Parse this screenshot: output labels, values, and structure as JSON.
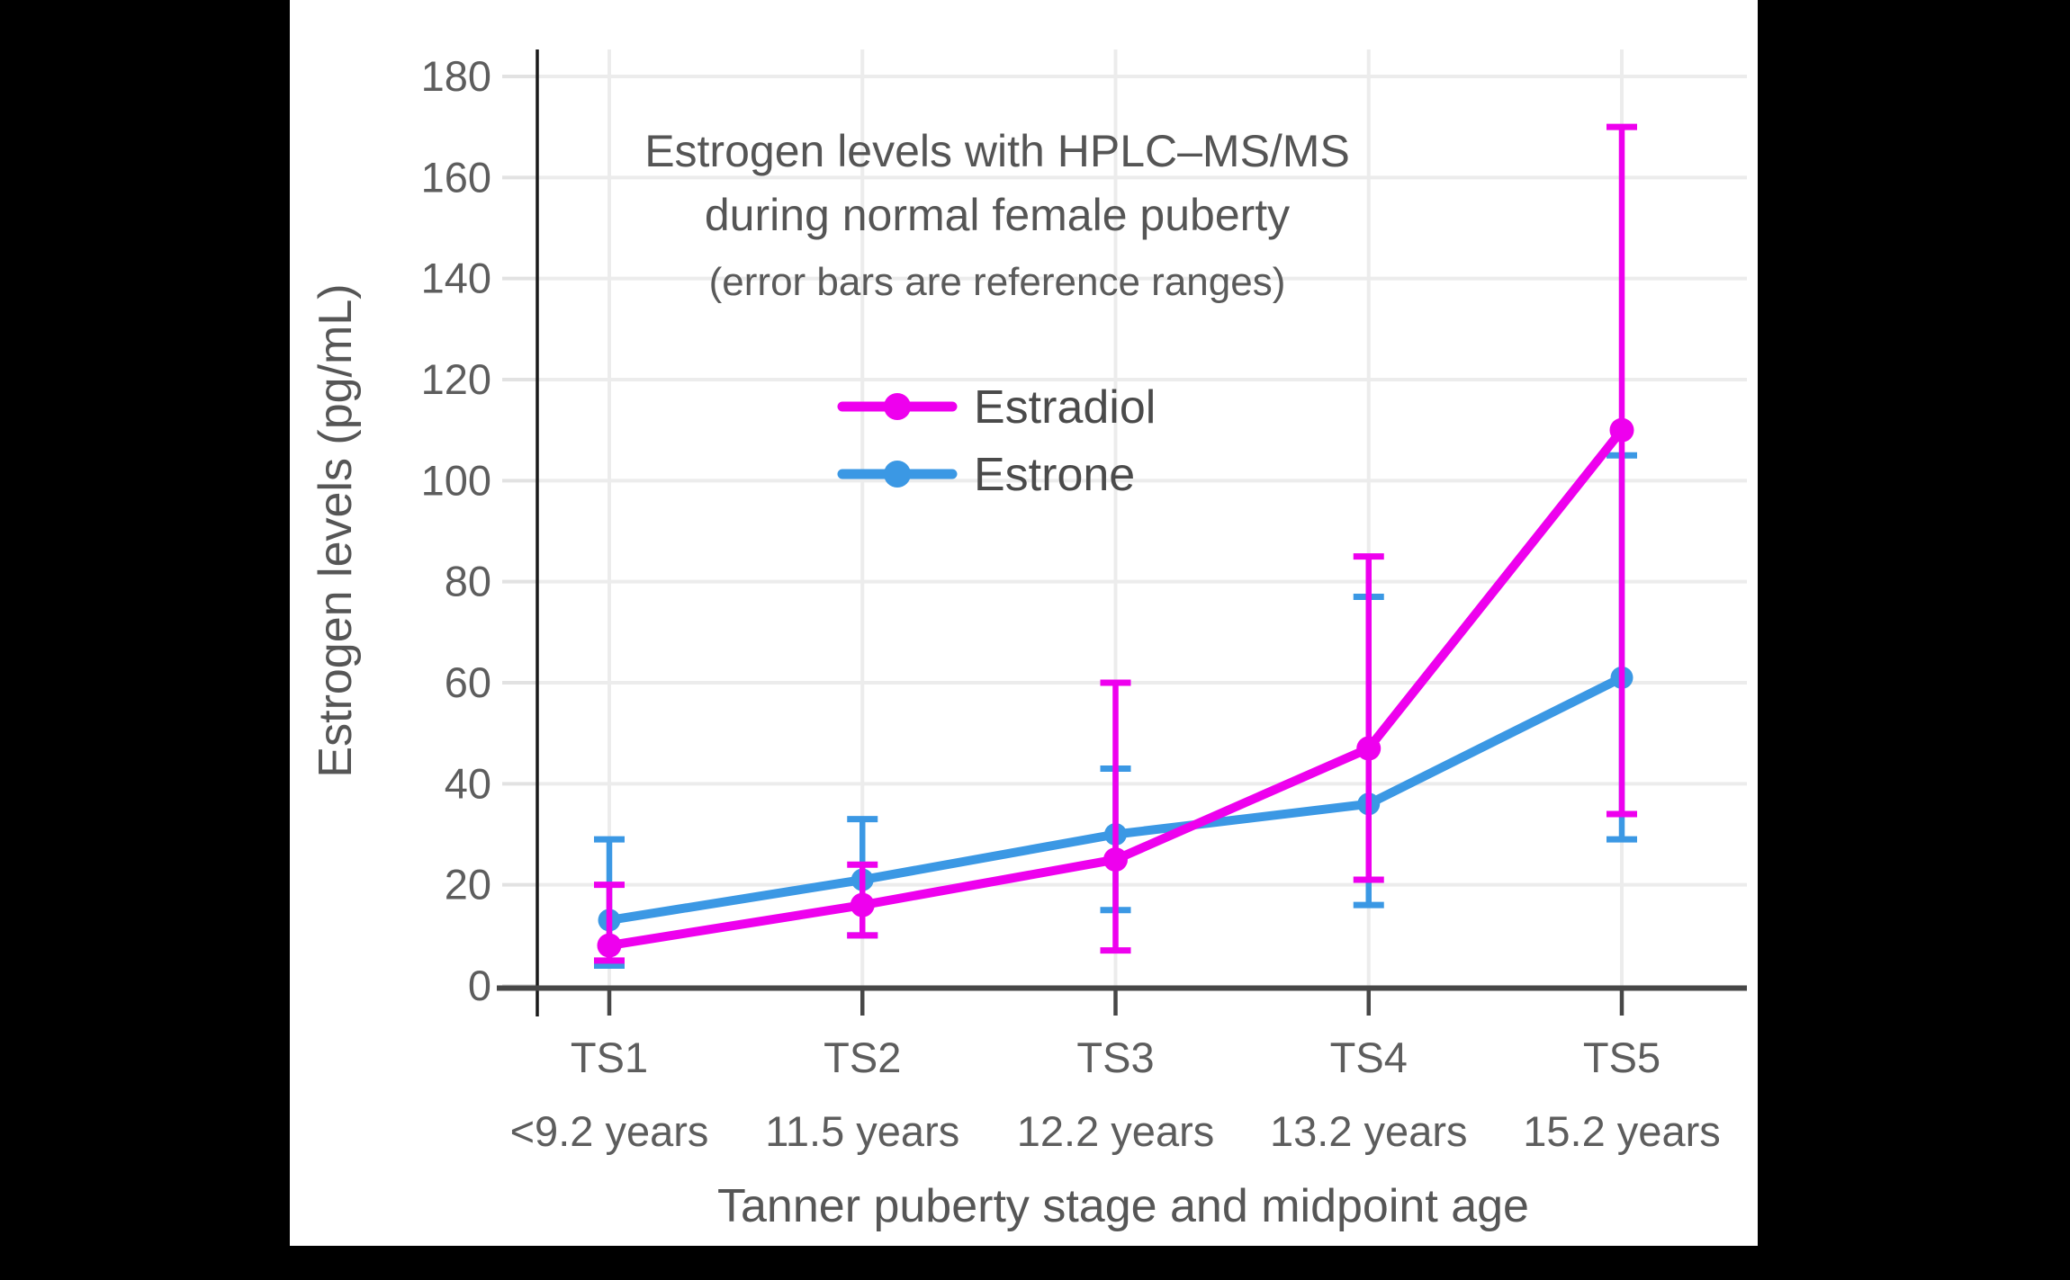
{
  "page": {
    "background_color": "#000000",
    "canvas_color": "#ffffff"
  },
  "chart_data": {
    "type": "line",
    "title": "Estrogen levels with HPLC–MS/MS during normal female puberty",
    "title_lines": [
      "Estrogen levels with HPLC–MS/MS",
      "during normal female puberty"
    ],
    "subtitle": "(error bars are reference ranges)",
    "xlabel": "Tanner puberty stage and midpoint age",
    "ylabel": "Estrogen levels (pg/mL)",
    "ylim": [
      0,
      180
    ],
    "ytick_step": 20,
    "grid": true,
    "legend_position": "inside-upper-left",
    "error_bars": "reference ranges",
    "categories": [
      "TS1",
      "TS2",
      "TS3",
      "TS4",
      "TS5"
    ],
    "category_sublabels": [
      "<9.2 years",
      "11.5 years",
      "12.2 years",
      "13.2 years",
      "15.2 years"
    ],
    "series": [
      {
        "name": "Estradiol",
        "color": "#ee00ee",
        "values": [
          8,
          16,
          25,
          47,
          110
        ],
        "error_low": [
          5,
          10,
          7,
          21,
          34
        ],
        "error_high": [
          20,
          24,
          60,
          85,
          170
        ]
      },
      {
        "name": "Estrone",
        "color": "#3b98e4",
        "values": [
          13,
          21,
          30,
          36,
          61
        ],
        "error_low": [
          4,
          10,
          15,
          16,
          29
        ],
        "error_high": [
          29,
          33,
          43,
          77,
          105
        ]
      }
    ]
  }
}
